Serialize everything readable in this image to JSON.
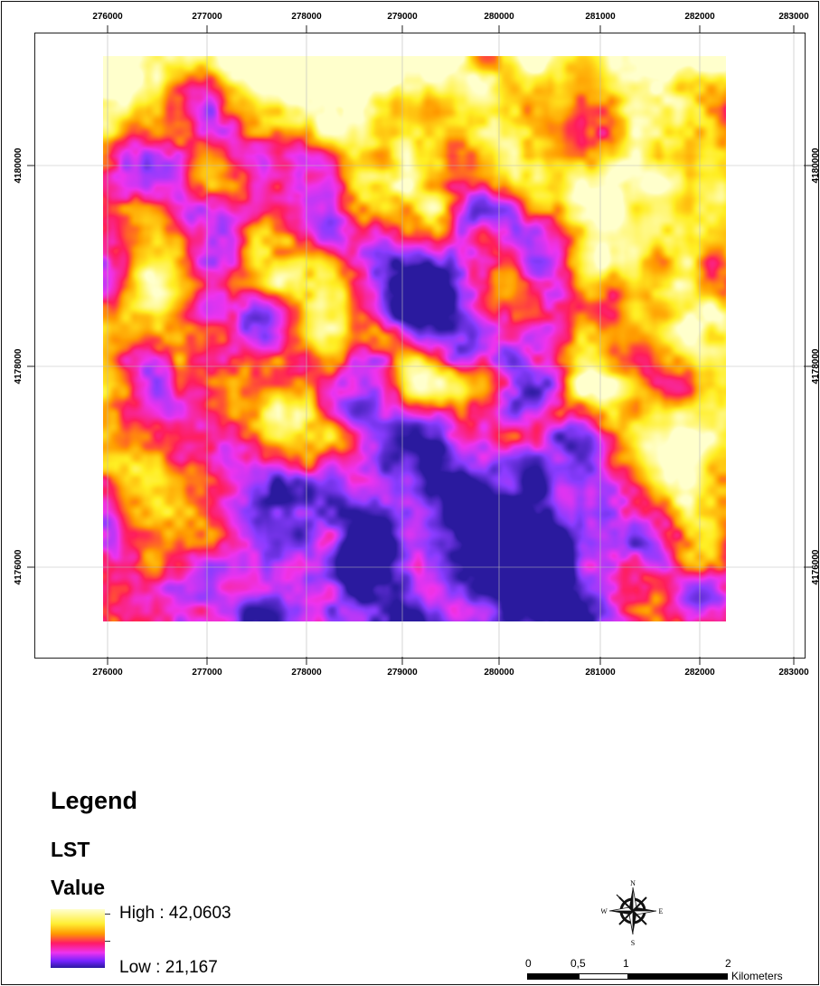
{
  "map": {
    "x_ticks": [
      "276000",
      "277000",
      "278000",
      "279000",
      "280000",
      "281000",
      "282000",
      "283000"
    ],
    "y_ticks": [
      "4180000",
      "4178000",
      "4176000"
    ],
    "y_ticks_right": [
      "4180000",
      "4178000",
      "4176000"
    ],
    "grid": true,
    "raster_colors": {
      "high": "#ffffcc",
      "yellow": "#ffee22",
      "orange": "#ff9a00",
      "red": "#ff1e5a",
      "magenta": "#ee33ee",
      "violet": "#8a3cff",
      "low": "#2a1a9e"
    }
  },
  "legend": {
    "title": "Legend",
    "layer": "LST",
    "field": "Value",
    "high_label": "High : 42,0603",
    "low_label": "Low : 21,167"
  },
  "north_arrow": {
    "n": "N",
    "s": "S",
    "e": "E",
    "w": "W"
  },
  "scale_bar": {
    "labels": [
      "0",
      "0,5",
      "1",
      "2"
    ],
    "unit": "Kilometers"
  }
}
